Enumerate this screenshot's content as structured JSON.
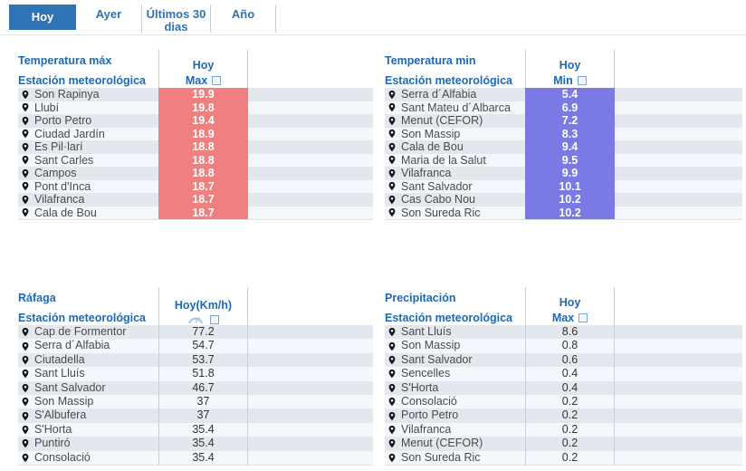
{
  "tabs": [
    {
      "label": "Hoy",
      "active": true
    },
    {
      "label": "Ayer",
      "active": false
    },
    {
      "label": "Últimos 30 dias",
      "active": false
    },
    {
      "label": "Año",
      "active": false
    }
  ],
  "colors": {
    "tab_active_bg": "#2e74b5",
    "heading_blue": "#1d6ab2",
    "temp_max_highlight": "#f0807f",
    "temp_min_highlight": "#7b79e3",
    "row_stripe_dark": "#e3e8ef",
    "row_stripe_light": "#f3f8fc"
  },
  "icons": {
    "station_marker": "location-pin-icon",
    "value_header_box": "empty-checkbox-icon",
    "gust_header": "wind-gauge-icon"
  },
  "tables": [
    {
      "title": "Temperatura máx",
      "period_header": "Hoy",
      "station_header": "Estación meteorológica",
      "value_header": "Max",
      "highlight": "#f0807f",
      "rows": [
        {
          "station": "Son Rapinya",
          "value": "19.9"
        },
        {
          "station": "Llubí",
          "value": "19.8"
        },
        {
          "station": "Porto Petro",
          "value": "19.4"
        },
        {
          "station": "Ciudad Jardín",
          "value": "18.9"
        },
        {
          "station": "Es Pil·larí",
          "value": "18.8"
        },
        {
          "station": "Sant Carles",
          "value": "18.8"
        },
        {
          "station": "Campos",
          "value": "18.8"
        },
        {
          "station": "Pont d'Inca",
          "value": "18.7"
        },
        {
          "station": "Vilafranca",
          "value": "18.7"
        },
        {
          "station": "Cala de Bou",
          "value": "18.7"
        }
      ]
    },
    {
      "title": "Temperatura min",
      "period_header": "Hoy",
      "station_header": "Estación meteorológica",
      "value_header": "Min",
      "highlight": "#7b79e3",
      "rows": [
        {
          "station": "Serra d´Alfabia",
          "value": "5.4"
        },
        {
          "station": "Sant Mateu d´Albarca",
          "value": "6.9"
        },
        {
          "station": "Menut (CEFOR)",
          "value": "7.2"
        },
        {
          "station": "Son Massip",
          "value": "8.3"
        },
        {
          "station": "Cala de Bou",
          "value": "9.4"
        },
        {
          "station": "Maria de la Salut",
          "value": "9.5"
        },
        {
          "station": "Vilafranca",
          "value": "9.9"
        },
        {
          "station": "Sant Salvador",
          "value": "10.1"
        },
        {
          "station": "Cas Cabo Nou",
          "value": "10.2"
        },
        {
          "station": "Son Sureda Ric",
          "value": "10.2"
        }
      ]
    },
    {
      "title": "Ráfaga",
      "period_header": "Hoy(Km/h)",
      "station_header": "Estación meteorológica",
      "value_header": "",
      "highlight": null,
      "rows": [
        {
          "station": "Cap de Formentor",
          "value": "77.2"
        },
        {
          "station": "Serra d´Alfabia",
          "value": "54.7"
        },
        {
          "station": "Ciutadella",
          "value": "53.7"
        },
        {
          "station": "Sant Lluís",
          "value": "51.8"
        },
        {
          "station": "Sant Salvador",
          "value": "46.7"
        },
        {
          "station": "Son Massip",
          "value": "37"
        },
        {
          "station": "S'Albufera",
          "value": "37"
        },
        {
          "station": "S'Horta",
          "value": "35.4"
        },
        {
          "station": "Puntiró",
          "value": "35.4"
        },
        {
          "station": "Consolació",
          "value": "35.4"
        }
      ]
    },
    {
      "title": "Precipitación",
      "period_header": "Hoy",
      "station_header": "Estación meteorológica",
      "value_header": "Max",
      "highlight": null,
      "rows": [
        {
          "station": "Sant Lluís",
          "value": "8.6"
        },
        {
          "station": "Son Massip",
          "value": "0.8"
        },
        {
          "station": "Sant Salvador",
          "value": "0.6"
        },
        {
          "station": "Sencelles",
          "value": "0.4"
        },
        {
          "station": "S'Horta",
          "value": "0.4"
        },
        {
          "station": "Consolació",
          "value": "0.2"
        },
        {
          "station": "Porto Petro",
          "value": "0.2"
        },
        {
          "station": "Vilafranca",
          "value": "0.2"
        },
        {
          "station": "Menut (CEFOR)",
          "value": "0.2"
        },
        {
          "station": "Son Sureda Ric",
          "value": "0.2"
        }
      ]
    }
  ]
}
